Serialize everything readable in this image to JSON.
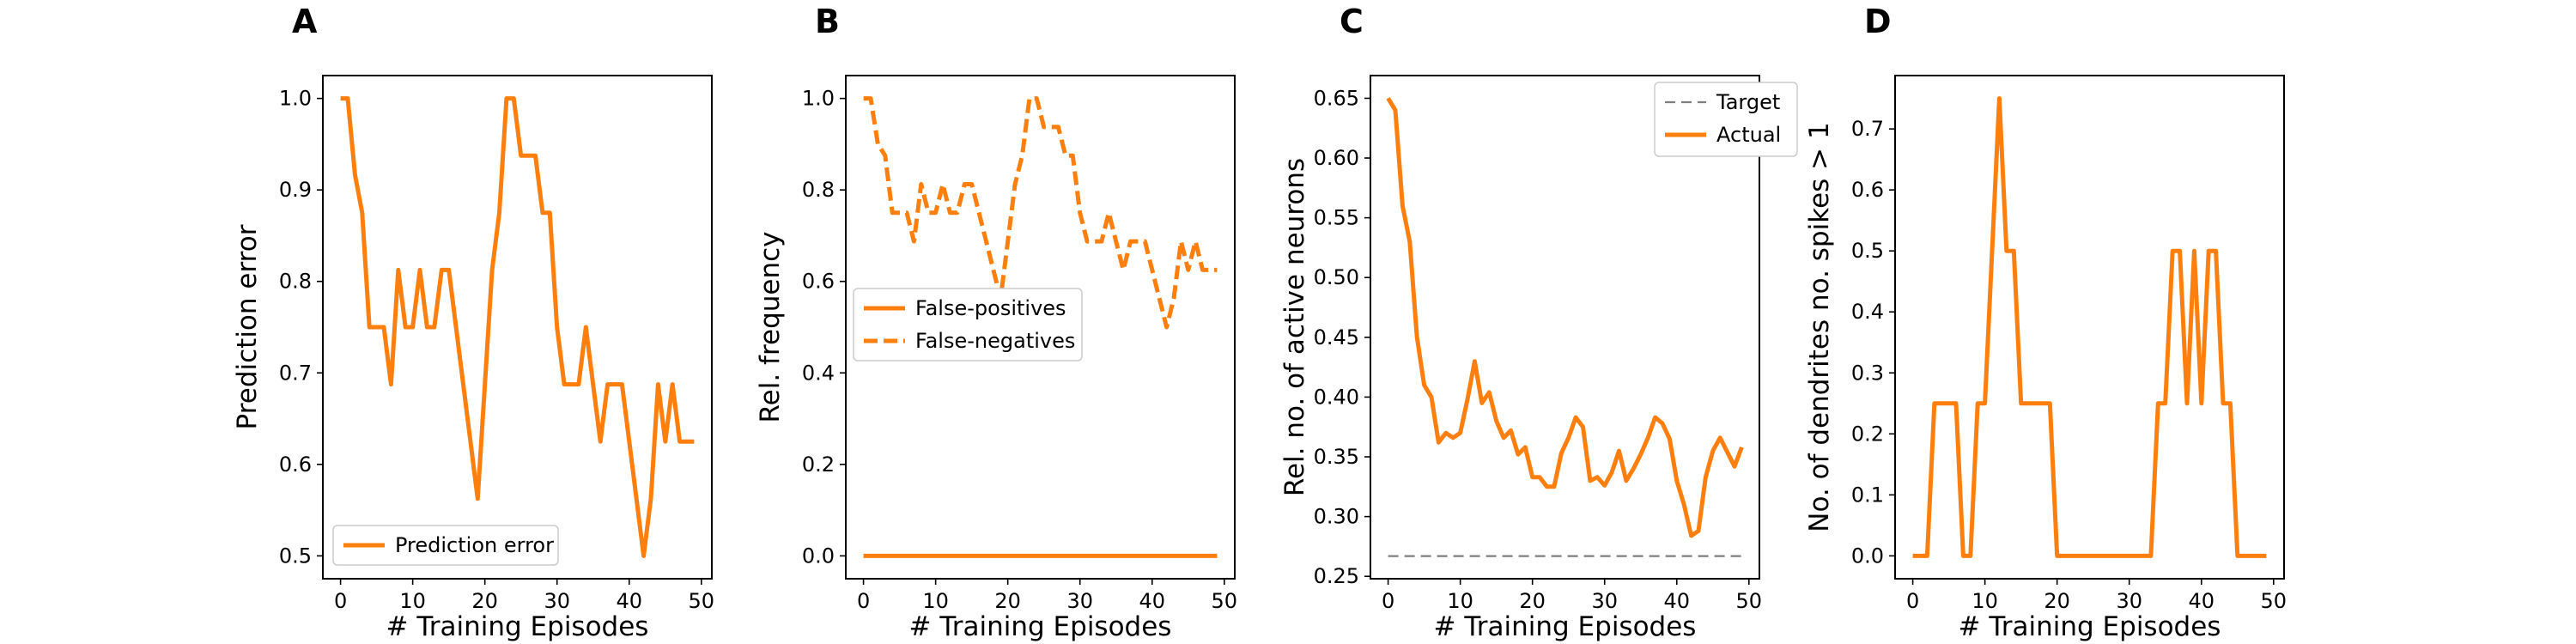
{
  "chart_data": [
    {
      "panel": "A",
      "type": "line",
      "xlabel": "# Training Episodes",
      "ylabel": "Prediction error",
      "xlim": [
        -2.45,
        51.45
      ],
      "ylim": [
        0.475,
        1.025
      ],
      "xticks": [
        0,
        10,
        20,
        30,
        40,
        50
      ],
      "yticks": [
        0.5,
        0.6,
        0.7,
        0.8,
        0.9,
        1.0
      ],
      "ytick_labels": [
        "0.5",
        "0.6",
        "0.7",
        "0.8",
        "0.9",
        "1.0"
      ],
      "grid": false,
      "legend_position": "lower-left",
      "series": [
        {
          "name": "Prediction error",
          "color": "#ff7f0e",
          "style": "solid",
          "x": [
            0,
            1,
            2,
            3,
            4,
            5,
            6,
            7,
            8,
            9,
            10,
            11,
            12,
            13,
            14,
            15,
            16,
            17,
            18,
            19,
            20,
            21,
            22,
            23,
            24,
            25,
            26,
            27,
            28,
            29,
            30,
            31,
            32,
            33,
            34,
            35,
            36,
            37,
            38,
            39,
            40,
            41,
            42,
            43,
            44,
            45,
            46,
            47,
            48,
            49
          ],
          "y": [
            1.0,
            1.0,
            0.9167,
            0.875,
            0.75,
            0.75,
            0.75,
            0.6875,
            0.8125,
            0.75,
            0.75,
            0.8125,
            0.75,
            0.75,
            0.8125,
            0.8125,
            0.75,
            0.6875,
            0.625,
            0.5625,
            0.6875,
            0.8125,
            0.875,
            1.0,
            1.0,
            0.9375,
            0.9375,
            0.9375,
            0.875,
            0.875,
            0.75,
            0.6875,
            0.6875,
            0.6875,
            0.75,
            0.6875,
            0.625,
            0.6875,
            0.6875,
            0.6875,
            0.625,
            0.5625,
            0.5,
            0.5625,
            0.6875,
            0.625,
            0.6875,
            0.625,
            0.625,
            0.625
          ]
        }
      ]
    },
    {
      "panel": "B",
      "type": "line",
      "xlabel": "# Training Episodes",
      "ylabel": "Rel. frequency",
      "xlim": [
        -2.45,
        51.45
      ],
      "ylim": [
        -0.05,
        1.05
      ],
      "xticks": [
        0,
        10,
        20,
        30,
        40,
        50
      ],
      "yticks": [
        0.0,
        0.2,
        0.4,
        0.6,
        0.8,
        1.0
      ],
      "ytick_labels": [
        "0.0",
        "0.2",
        "0.4",
        "0.6",
        "0.8",
        "1.0"
      ],
      "grid": false,
      "legend_position": "center-left",
      "series": [
        {
          "name": "False-positives",
          "color": "#ff7f0e",
          "style": "solid",
          "x": [
            0,
            1,
            2,
            3,
            4,
            5,
            6,
            7,
            8,
            9,
            10,
            11,
            12,
            13,
            14,
            15,
            16,
            17,
            18,
            19,
            20,
            21,
            22,
            23,
            24,
            25,
            26,
            27,
            28,
            29,
            30,
            31,
            32,
            33,
            34,
            35,
            36,
            37,
            38,
            39,
            40,
            41,
            42,
            43,
            44,
            45,
            46,
            47,
            48,
            49
          ],
          "y": [
            0,
            0,
            0,
            0,
            0,
            0,
            0,
            0,
            0,
            0,
            0,
            0,
            0,
            0,
            0,
            0,
            0,
            0,
            0,
            0,
            0,
            0,
            0,
            0,
            0,
            0,
            0,
            0,
            0,
            0,
            0,
            0,
            0,
            0,
            0,
            0,
            0,
            0,
            0,
            0,
            0,
            0,
            0,
            0,
            0,
            0,
            0,
            0,
            0,
            0
          ]
        },
        {
          "name": "False-negatives",
          "color": "#ff7f0e",
          "style": "dashed",
          "x": [
            0,
            1,
            2,
            3,
            4,
            5,
            6,
            7,
            8,
            9,
            10,
            11,
            12,
            13,
            14,
            15,
            16,
            17,
            18,
            19,
            20,
            21,
            22,
            23,
            24,
            25,
            26,
            27,
            28,
            29,
            30,
            31,
            32,
            33,
            34,
            35,
            36,
            37,
            38,
            39,
            40,
            41,
            42,
            43,
            44,
            45,
            46,
            47,
            48,
            49
          ],
          "y": [
            1.0,
            1.0,
            0.9,
            0.875,
            0.75,
            0.75,
            0.75,
            0.6875,
            0.8125,
            0.75,
            0.75,
            0.8125,
            0.75,
            0.75,
            0.8125,
            0.8125,
            0.75,
            0.6875,
            0.625,
            0.5625,
            0.6875,
            0.8125,
            0.875,
            1.0,
            1.0,
            0.9375,
            0.9375,
            0.9375,
            0.875,
            0.875,
            0.75,
            0.6875,
            0.6875,
            0.6875,
            0.75,
            0.6875,
            0.625,
            0.6875,
            0.6875,
            0.6875,
            0.625,
            0.5625,
            0.5,
            0.5625,
            0.6875,
            0.625,
            0.6875,
            0.625,
            0.625,
            0.625
          ]
        }
      ]
    },
    {
      "panel": "C",
      "type": "line",
      "xlabel": "# Training Episodes",
      "ylabel": "Rel. no. of active neurons",
      "xlim": [
        -2.45,
        51.45
      ],
      "ylim": [
        0.248,
        0.669
      ],
      "xticks": [
        0,
        10,
        20,
        30,
        40,
        50
      ],
      "yticks": [
        0.25,
        0.3,
        0.35,
        0.4,
        0.45,
        0.5,
        0.55,
        0.6,
        0.65
      ],
      "ytick_labels": [
        "0.25",
        "0.30",
        "0.35",
        "0.40",
        "0.45",
        "0.50",
        "0.55",
        "0.60",
        "0.65"
      ],
      "grid": false,
      "legend_position": "upper-right",
      "series": [
        {
          "name": "Target",
          "color": "#7f7f7f",
          "style": "dashed",
          "x": [
            0,
            49
          ],
          "y": [
            0.267,
            0.267
          ]
        },
        {
          "name": "Actual",
          "color": "#ff7f0e",
          "style": "solid",
          "x": [
            0,
            1,
            2,
            3,
            4,
            5,
            6,
            7,
            8,
            9,
            10,
            11,
            12,
            13,
            14,
            15,
            16,
            17,
            18,
            19,
            20,
            21,
            22,
            23,
            24,
            25,
            26,
            27,
            28,
            29,
            30,
            31,
            32,
            33,
            34,
            35,
            36,
            37,
            38,
            39,
            40,
            41,
            42,
            43,
            44,
            45,
            46,
            47,
            48,
            49
          ],
          "y": [
            0.65,
            0.64,
            0.56,
            0.53,
            0.45,
            0.41,
            0.4,
            0.362,
            0.37,
            0.366,
            0.37,
            0.398,
            0.43,
            0.395,
            0.404,
            0.38,
            0.366,
            0.372,
            0.352,
            0.358,
            0.333,
            0.333,
            0.325,
            0.325,
            0.353,
            0.366,
            0.383,
            0.375,
            0.33,
            0.333,
            0.326,
            0.337,
            0.355,
            0.33,
            0.34,
            0.352,
            0.366,
            0.383,
            0.378,
            0.365,
            0.33,
            0.31,
            0.284,
            0.288,
            0.333,
            0.355,
            0.366,
            0.354,
            0.342,
            0.358
          ]
        }
      ]
    },
    {
      "panel": "D",
      "type": "line",
      "xlabel": "# Training Episodes",
      "ylabel": "No. of dendrites no. spikes > 1",
      "xlim": [
        -2.45,
        51.45
      ],
      "ylim": [
        -0.0375,
        0.7875
      ],
      "xticks": [
        0,
        10,
        20,
        30,
        40,
        50
      ],
      "yticks": [
        0.0,
        0.1,
        0.2,
        0.3,
        0.4,
        0.5,
        0.6,
        0.7
      ],
      "ytick_labels": [
        "0.0",
        "0.1",
        "0.2",
        "0.3",
        "0.4",
        "0.5",
        "0.6",
        "0.7"
      ],
      "grid": false,
      "series": [
        {
          "name": "",
          "color": "#ff7f0e",
          "style": "solid",
          "x": [
            0,
            1,
            2,
            3,
            4,
            5,
            6,
            7,
            8,
            9,
            10,
            11,
            12,
            13,
            14,
            15,
            16,
            17,
            18,
            19,
            20,
            21,
            22,
            23,
            24,
            25,
            26,
            27,
            28,
            29,
            30,
            31,
            32,
            33,
            34,
            35,
            36,
            37,
            38,
            39,
            40,
            41,
            42,
            43,
            44,
            45,
            46,
            47,
            48,
            49
          ],
          "y": [
            0,
            0,
            0,
            0.25,
            0.25,
            0.25,
            0.25,
            0,
            0,
            0.25,
            0.25,
            0.5,
            0.75,
            0.5,
            0.5,
            0.25,
            0.25,
            0.25,
            0.25,
            0.25,
            0,
            0,
            0,
            0,
            0,
            0,
            0,
            0,
            0,
            0,
            0,
            0,
            0,
            0,
            0.25,
            0.25,
            0.5,
            0.5,
            0.25,
            0.5,
            0.25,
            0.5,
            0.5,
            0.25,
            0.25,
            0,
            0,
            0,
            0,
            0
          ]
        }
      ]
    }
  ]
}
